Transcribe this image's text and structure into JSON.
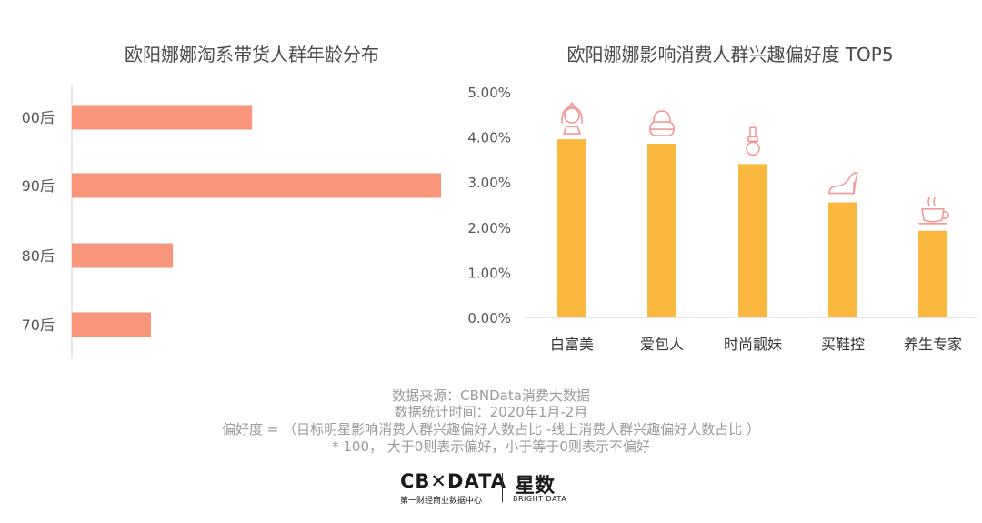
{
  "chart_data": [
    {
      "type": "bar",
      "orientation": "horizontal",
      "title": "欧阳娜娜淘系带货人群年龄分布",
      "categories": [
        "00后",
        "90后",
        "80后",
        "70后"
      ],
      "values": [
        0.41,
        0.84,
        0.23,
        0.18
      ],
      "xlim": [
        0,
        0.84
      ],
      "grid": false,
      "color": "#f7967a"
    },
    {
      "type": "bar",
      "orientation": "vertical",
      "title": "欧阳娜娜影响消费人群兴趣偏好度 TOP5",
      "categories": [
        "白富美",
        "爱包人",
        "时尚靓妹",
        "买鞋控",
        "养生专家"
      ],
      "values": [
        3.95,
        3.85,
        3.4,
        2.55,
        1.92
      ],
      "icons": [
        "lady-icon",
        "handbag-icon",
        "nail-polish-icon",
        "high-heel-icon",
        "tea-cup-icon"
      ],
      "y_ticks": [
        "0.00%",
        "1.00%",
        "2.00%",
        "3.00%",
        "4.00%",
        "5.00%"
      ],
      "ylim": [
        0,
        5
      ],
      "grid": false,
      "color": "#fbb83f",
      "icon_color": "#f29a98"
    }
  ],
  "footer": {
    "source": "数据来源：CBNData消费大数据",
    "period": "数据统计时间：2020年1月-2月",
    "formula": "偏好度 = （目标明星影响消费人群兴趣偏好人数占比 -线上消费人群兴趣偏好人数占比 ）",
    "note": "* 100， 大于0则表示偏好，小于等于0则表示不偏好"
  },
  "logos": {
    "cbn_main": "CB✕DATA",
    "cbn_sub": "第一财经商业数据中心",
    "bright_main": "星数",
    "bright_sub": "BRIGHT DATA"
  }
}
